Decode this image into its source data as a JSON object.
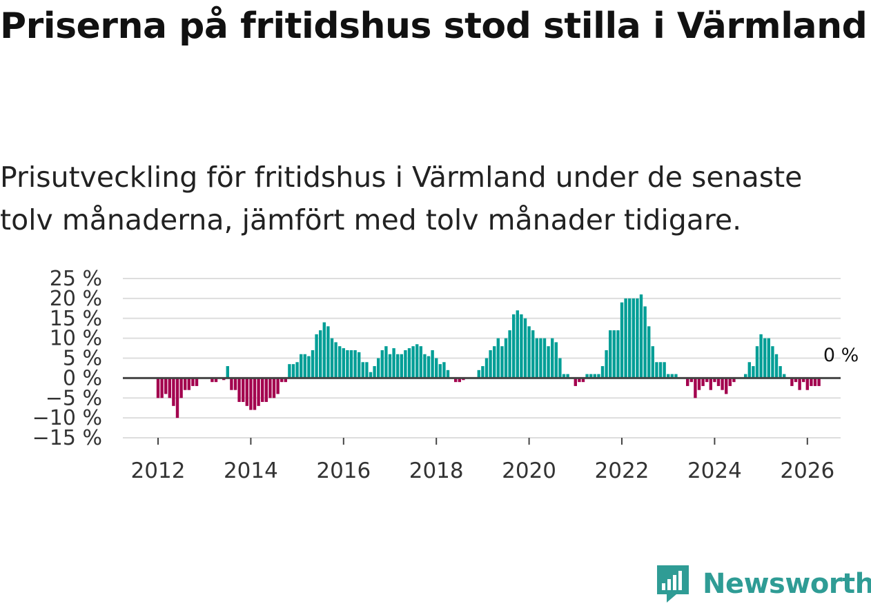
{
  "title": "Priserna på fritidshus stod stilla i Värmland",
  "subtitle": "Prisutveckling för fritidshus i Värmland under de senaste tolv månaderna, jämfört med tolv månader tidigare.",
  "brand": {
    "name": "Newsworthy",
    "color": "#2f9c95"
  },
  "colors": {
    "positive": "#009e96",
    "negative": "#a3004e",
    "grid": "#dddddd",
    "zero_line": "#444444"
  },
  "chart_data": {
    "type": "bar",
    "start": "2012-01",
    "interval": "month",
    "ylim": [
      -15,
      25
    ],
    "yticks": [
      25,
      20,
      15,
      10,
      5,
      0,
      -5,
      -10,
      -15
    ],
    "ytick_labels": [
      "25 %",
      "20 %",
      "15 %",
      "10 %",
      "5 %",
      "0 %",
      "−5 %",
      "−10 %",
      "−15 %"
    ],
    "xticks": [
      2012,
      2014,
      2016,
      2018,
      2020,
      2022,
      2024,
      2026
    ],
    "xtick_labels": [
      "2012",
      "2014",
      "2016",
      "2018",
      "2020",
      "2022",
      "2024",
      "2026"
    ],
    "annotation": "0 %",
    "values": [
      -5,
      -5,
      -4,
      -5,
      -7,
      -10,
      -5,
      -3,
      -3,
      -2,
      -2,
      0,
      0,
      0,
      -1,
      -1,
      0,
      -0.5,
      3,
      -3,
      -3,
      -6,
      -6,
      -7,
      -8,
      -8,
      -7,
      -6,
      -6,
      -5,
      -5,
      -4,
      -1,
      -1,
      3.5,
      3.5,
      4,
      6,
      6,
      5.5,
      7,
      11,
      12,
      14,
      13,
      10,
      9,
      8,
      7.5,
      7,
      7,
      7,
      6.5,
      4,
      4,
      1.5,
      3,
      5,
      7,
      8,
      6,
      7.5,
      6,
      6,
      7,
      7.5,
      8,
      8.5,
      8,
      6,
      5.5,
      7,
      5,
      3.5,
      4,
      2,
      0,
      -1,
      -1,
      -0.5,
      0,
      0,
      0,
      2,
      3,
      5,
      7,
      8,
      10,
      8,
      10,
      12,
      16,
      17,
      16,
      15,
      13,
      12,
      10,
      10,
      10,
      8,
      10,
      9,
      5,
      1,
      1,
      0,
      -2,
      -1,
      -1,
      1,
      1,
      1,
      1,
      3,
      7,
      12,
      12,
      12,
      19,
      20,
      20,
      20,
      20,
      21,
      18,
      13,
      8,
      4,
      4,
      4,
      1,
      1,
      1,
      0,
      0,
      -2,
      -1,
      -5,
      -3,
      -2,
      -1,
      -3,
      -1,
      -2,
      -3,
      -4,
      -2,
      -1,
      0,
      0,
      1,
      4,
      3,
      8,
      11,
      10,
      10,
      8,
      6,
      3,
      1,
      0,
      -2,
      -1,
      -3,
      -1,
      -3,
      -2,
      -2,
      -2
    ]
  }
}
